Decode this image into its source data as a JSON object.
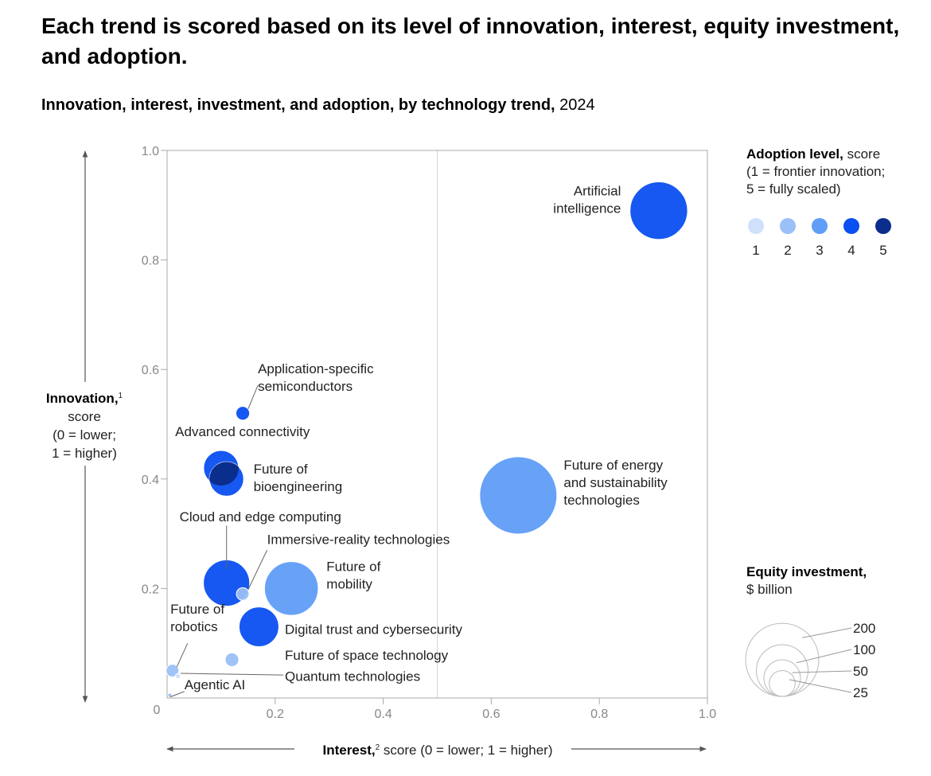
{
  "title": "Each trend is scored based on its level of innovation, interest, equity investment, and adoption.",
  "subtitle_bold": "Innovation, interest, investment, and adoption, by technology trend,",
  "subtitle_year": "2024",
  "y_axis": {
    "name": "Innovation,",
    "footnote": "1",
    "line2": "score",
    "line3": "(0 = lower;",
    "line4": "1 = higher)"
  },
  "x_axis": {
    "name": "Interest,",
    "footnote": "2",
    "rest": "score (0 = lower; 1 = higher)"
  },
  "adoption_legend": {
    "title_bold": "Adoption level,",
    "title_rest": "score",
    "line2": "(1 = frontier innovation;",
    "line3": "5 = fully scaled)",
    "levels": [
      "1",
      "2",
      "3",
      "4",
      "5"
    ]
  },
  "size_legend": {
    "title_bold": "Equity investment,",
    "line2": "$ billion",
    "values": [
      200,
      100,
      50,
      25
    ],
    "labels": [
      "200",
      "100",
      "50",
      "25"
    ]
  },
  "colors": {
    "level1": "#cfe0fb",
    "level2": "#9ac0f7",
    "level3": "#5f9df7",
    "level4": "#0a4ff0",
    "level5": "#0b2d8c",
    "axis": "#aaaaaa",
    "divider": "#d6d6d6"
  },
  "chart_data": {
    "type": "scatter",
    "subtype": "bubble",
    "title": "Innovation, interest, investment, and adoption, by technology trend, 2024",
    "xlabel": "Interest score (0 = lower; 1 = higher)",
    "ylabel": "Innovation score (0 = lower; 1 = higher)",
    "xlim": [
      0,
      1
    ],
    "ylim": [
      0,
      1
    ],
    "x_ticks": [
      "0.2",
      "0.4",
      "0.6",
      "0.8",
      "1.0"
    ],
    "y_ticks": [
      "0.2",
      "0.4",
      "0.6",
      "0.8",
      "1.0"
    ],
    "origin_label": "0",
    "series": [
      {
        "name": "Artificial intelligence",
        "label_lines": [
          "Artificial",
          "intelligence"
        ],
        "x": 0.91,
        "y": 0.89,
        "adoption": 4,
        "investment": 124
      },
      {
        "name": "Future of energy and sustainability technologies",
        "label_lines": [
          "Future of energy",
          "and sustainability",
          "technologies"
        ],
        "x": 0.65,
        "y": 0.37,
        "adoption": 3,
        "investment": 223
      },
      {
        "name": "Application-specific semiconductors",
        "label_lines": [
          "Application-specific",
          "semiconductors"
        ],
        "x": 0.14,
        "y": 0.52,
        "adoption": 4,
        "investment": 7
      },
      {
        "name": "Advanced connectivity",
        "label_lines": [
          "Advanced connectivity"
        ],
        "x": 0.1,
        "y": 0.42,
        "adoption": 4,
        "investment": 46
      },
      {
        "name": "Future of bioengineering",
        "label_lines": [
          "Future of",
          "bioengineering"
        ],
        "x": 0.11,
        "y": 0.4,
        "adoption": 4,
        "investment": 44
      },
      {
        "name": "Cloud and edge computing",
        "label_lines": [
          "Cloud and edge computing"
        ],
        "x": 0.11,
        "y": 0.21,
        "adoption": 4,
        "investment": 80
      },
      {
        "name": "Immersive-reality technologies",
        "label_lines": [
          "Immersive-reality technologies"
        ],
        "x": 0.14,
        "y": 0.19,
        "adoption": 2,
        "investment": 6
      },
      {
        "name": "Future of mobility",
        "label_lines": [
          "Future of",
          "mobility"
        ],
        "x": 0.23,
        "y": 0.2,
        "adoption": 3,
        "investment": 108
      },
      {
        "name": "Digital trust and cybersecurity",
        "label_lines": [
          "Digital trust and cybersecurity"
        ],
        "x": 0.17,
        "y": 0.13,
        "adoption": 4,
        "investment": 59
      },
      {
        "name": "Future of space technology",
        "label_lines": [
          "Future of space technology"
        ],
        "x": 0.12,
        "y": 0.07,
        "adoption": 2,
        "investment": 7
      },
      {
        "name": "Future of robotics",
        "label_lines": [
          "Future of",
          "robotics"
        ],
        "x": 0.01,
        "y": 0.05,
        "adoption": 2,
        "investment": 6
      },
      {
        "name": "Quantum technologies",
        "label_lines": [
          "Quantum technologies"
        ],
        "x": 0.02,
        "y": 0.04,
        "adoption": 1,
        "investment": 1
      },
      {
        "name": "Agentic AI",
        "label_lines": [
          "Agentic AI"
        ],
        "x": 0.005,
        "y": 0.005,
        "adoption": 2,
        "investment": 0.5
      }
    ]
  }
}
